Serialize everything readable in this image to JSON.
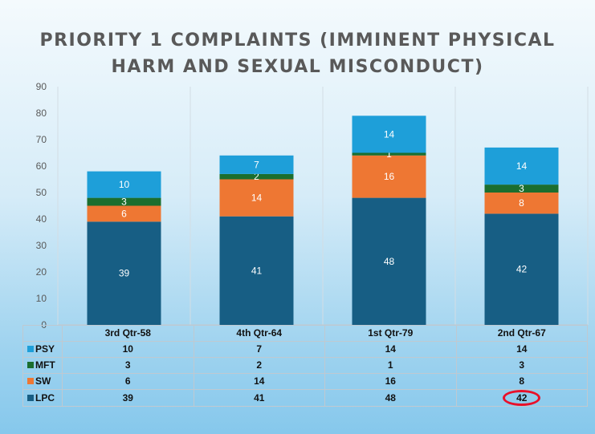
{
  "chart_data": {
    "type": "bar",
    "stacked": true,
    "title": "PRIORITY 1 COMPLAINTS (IMMINENT PHYSICAL HARM AND SEXUAL MISCONDUCT)",
    "title_lines": [
      "PRIORITY 1 COMPLAINTS (IMMINENT PHYSICAL",
      "HARM AND SEXUAL MISCONDUCT)"
    ],
    "categories": [
      "3rd Qtr-58",
      "4th Qtr-64",
      "1st Qtr-79",
      "2nd Qtr-67"
    ],
    "series": [
      {
        "name": "LPC",
        "color": "#175e84",
        "values": [
          39,
          41,
          48,
          42
        ]
      },
      {
        "name": "SW",
        "color": "#ee7733",
        "values": [
          6,
          14,
          16,
          8
        ]
      },
      {
        "name": "MFT",
        "color": "#1b6e2e",
        "values": [
          3,
          2,
          1,
          3
        ]
      },
      {
        "name": "PSY",
        "color": "#1e9fd9",
        "values": [
          10,
          7,
          14,
          14
        ]
      }
    ],
    "table_order": [
      "PSY",
      "MFT",
      "SW",
      "LPC"
    ],
    "ylim": [
      0,
      90
    ],
    "yticks": [
      0,
      10,
      20,
      30,
      40,
      50,
      60,
      70,
      80,
      90
    ],
    "xlabel": "",
    "ylabel": "",
    "grid": "vertical",
    "data_table": true,
    "highlight": {
      "series": "LPC",
      "category": "2nd Qtr-67",
      "value": 42
    }
  }
}
